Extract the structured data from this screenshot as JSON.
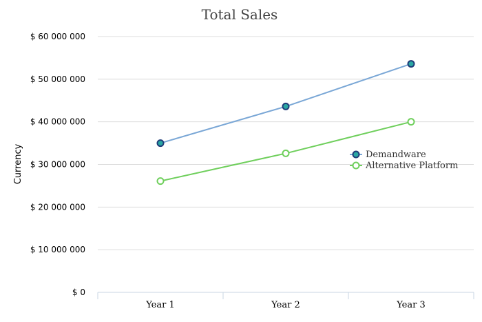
{
  "chart_data": {
    "type": "line",
    "title": "Total Sales",
    "ylabel": "Currency",
    "xlabel": "",
    "categories": [
      "Year 1",
      "Year 2",
      "Year 3"
    ],
    "ylim": [
      0,
      60000000
    ],
    "yticks": [
      0,
      10000000,
      20000000,
      30000000,
      40000000,
      50000000,
      60000000
    ],
    "ytick_labels": [
      "$ 0",
      "$ 10 000 000",
      "$ 20 000 000",
      "$ 30 000 000",
      "$ 40 000 000",
      "$ 50 000 000",
      "$ 60 000 000"
    ],
    "grid": true,
    "legend_position": "right",
    "series": [
      {
        "name": "Demandware",
        "values": [
          35000000,
          43600000,
          53600000
        ],
        "line_color": "#7aa7d6",
        "marker_fill": "#2aa7a3",
        "marker_stroke": "#1f3c79"
      },
      {
        "name": "Alternative Platform",
        "values": [
          26100000,
          32600000,
          40000000
        ],
        "line_color": "#6fcf5c",
        "marker_fill": "#ffffff",
        "marker_stroke": "#6fcf5c"
      }
    ]
  }
}
